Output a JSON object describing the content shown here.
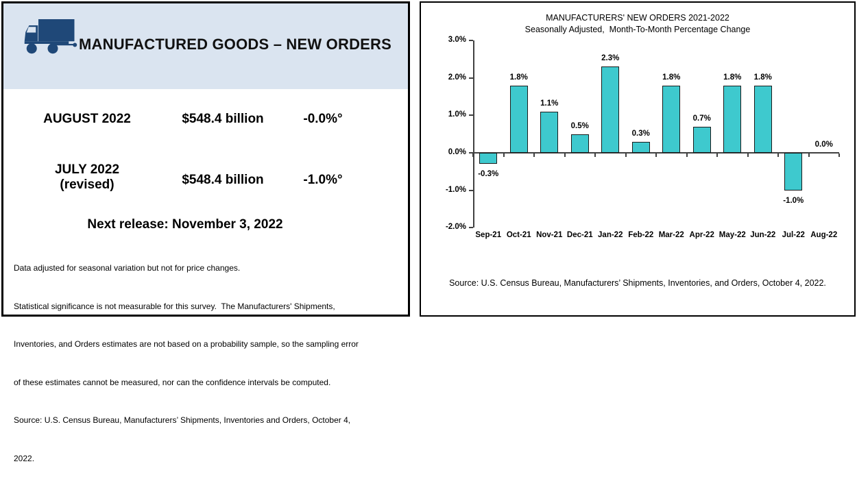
{
  "left_panel": {
    "header": {
      "title": "MANUFACTURED GOODS – NEW ORDERS",
      "icon": "truck-icon",
      "bg_color": "#dae4f0",
      "icon_color": "#1f4878"
    },
    "rows": [
      {
        "label": "AUGUST 2022",
        "value": "$548.4 billion",
        "change": "-0.0%°"
      },
      {
        "label": "JULY 2022",
        "label2": "(revised)",
        "value": "$548.4 billion",
        "change": "-1.0%°"
      }
    ],
    "next_release": "Next release: November 3, 2022",
    "footnote_lines": [
      "Data adjusted for seasonal variation but not for price changes.",
      "Statistical significance is not measurable for this survey.  The Manufacturers' Shipments,",
      "Inventories, and Orders estimates are not based on a probability sample, so the sampling error",
      "of these estimates cannot be measured, nor can the confidence intervals be computed.",
      "Source: U.S. Census Bureau, Manufacturers’ Shipments, Inventories and Orders, October 4,",
      "2022."
    ]
  },
  "chart_panel": {
    "source": "Source: U.S. Census Bureau, Manufacturers’ Shipments, Inventories, and Orders, October 4, 2022."
  },
  "chart_data": {
    "type": "bar",
    "title": "MANUFACTURERS' NEW ORDERS 2021-2022",
    "subtitle": "Seasonally Adjusted,  Month-To-Month Percentage Change",
    "categories": [
      "Sep-21",
      "Oct-21",
      "Nov-21",
      "Dec-21",
      "Jan-22",
      "Feb-22",
      "Mar-22",
      "Apr-22",
      "May-22",
      "Jun-22",
      "Jul-22",
      "Aug-22"
    ],
    "values": [
      -0.3,
      1.8,
      1.1,
      0.5,
      2.3,
      0.3,
      1.8,
      0.7,
      1.8,
      1.8,
      -1.0,
      0.0
    ],
    "value_labels": [
      "-0.3%",
      "1.8%",
      "1.1%",
      "0.5%",
      "2.3%",
      "0.3%",
      "1.8%",
      "0.7%",
      "1.8%",
      "1.8%",
      "-1.0%",
      "0.0%"
    ],
    "y_ticks": [
      3.0,
      2.0,
      1.0,
      0.0,
      -1.0,
      -2.0
    ],
    "y_tick_labels": [
      "3.0%",
      "2.0%",
      "1.0%",
      "0.0%",
      "-1.0%",
      "-2.0%"
    ],
    "ylim": [
      -2.0,
      3.0
    ],
    "ylabel": "",
    "xlabel": "",
    "grid": false,
    "legend": false,
    "bar_color": "#3ec9ce",
    "bar_border_color": "#1a1a1a",
    "axis_color": "#404040"
  }
}
